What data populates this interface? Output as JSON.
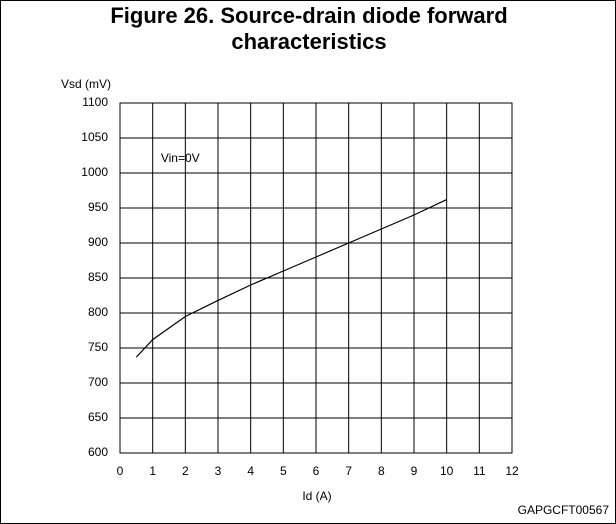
{
  "chart_data": {
    "type": "line",
    "title": "Figure 26. Source-drain diode forward characteristics",
    "y_label": "Vsd (mV)",
    "x_label": "Id (A)",
    "annotation": "Vin=0V",
    "figure_code": "GAPGCFT00567",
    "x": [
      0.5,
      1,
      2,
      3,
      4,
      5,
      6,
      7,
      8,
      9,
      10
    ],
    "values": [
      737,
      762,
      795,
      818,
      840,
      860,
      880,
      900,
      920,
      940,
      962
    ],
    "color": "#000000",
    "xlim": [
      0,
      12
    ],
    "xticks": [
      0,
      1,
      2,
      3,
      4,
      5,
      6,
      7,
      8,
      9,
      10,
      11,
      12
    ],
    "ylim": [
      600,
      1100
    ],
    "yticks": [
      600,
      650,
      700,
      750,
      800,
      850,
      900,
      950,
      1000,
      1050,
      1100
    ],
    "grid": true
  }
}
